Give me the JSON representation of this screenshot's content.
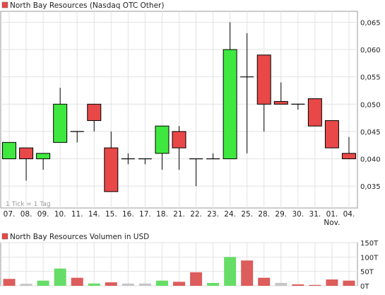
{
  "colors": {
    "up": "#3fe83f",
    "down": "#e84848",
    "neutral": "#c6c6c6",
    "volume_up": "#66dd66",
    "volume_down": "#dd5c5c",
    "grid": "#e2e2e2",
    "frame": "#999999"
  },
  "chart_data": [
    {
      "type": "candlestick",
      "title": "North Bay Resources (Nasdaq OTC Other)",
      "legend_color": "#e84848",
      "annotation": "1 Tick = 1 Tag",
      "y_axis_position": "right",
      "ylim": [
        0.031,
        0.067
      ],
      "yticks": [
        "0,035",
        "0,040",
        "0,045",
        "0,050",
        "0,055",
        "0,060",
        "0,065"
      ],
      "ytick_values": [
        0.035,
        0.04,
        0.045,
        0.05,
        0.055,
        0.06,
        0.065
      ],
      "grid": true,
      "categories": [
        "07.",
        "08.",
        "09.",
        "10.",
        "11.",
        "14.",
        "15.",
        "16.",
        "17.",
        "18.",
        "21.",
        "22.",
        "23.",
        "24.",
        "25.",
        "28.",
        "29.",
        "30.",
        "31.",
        "01.",
        "04."
      ],
      "category_sublabels": {
        "01.": "Nov."
      },
      "open": [
        0.04,
        0.042,
        0.04,
        0.043,
        0.045,
        0.05,
        0.042,
        0.04,
        0.04,
        0.041,
        0.045,
        0.04,
        0.04,
        0.04,
        0.055,
        0.059,
        0.0505,
        0.05,
        0.051,
        0.047,
        0.041
      ],
      "high": [
        0.043,
        0.042,
        0.041,
        0.053,
        0.045,
        0.05,
        0.045,
        0.041,
        0.04,
        0.046,
        0.046,
        0.04,
        0.041,
        0.065,
        0.063,
        0.059,
        0.054,
        0.05,
        0.051,
        0.047,
        0.044
      ],
      "low": [
        0.04,
        0.036,
        0.038,
        0.043,
        0.043,
        0.045,
        0.034,
        0.039,
        0.039,
        0.038,
        0.038,
        0.035,
        0.04,
        0.04,
        0.041,
        0.045,
        0.05,
        0.049,
        0.046,
        0.042,
        0.04
      ],
      "close": [
        0.043,
        0.04,
        0.041,
        0.05,
        0.045,
        0.047,
        0.034,
        0.04,
        0.04,
        0.046,
        0.042,
        0.04,
        0.04,
        0.06,
        0.055,
        0.05,
        0.05,
        0.05,
        0.046,
        0.042,
        0.04
      ]
    },
    {
      "type": "bar",
      "title": "North Bay Resources Volumen in USD",
      "legend_color": "#e84848",
      "y_axis_position": "right",
      "ylim": [
        0,
        150
      ],
      "yticks": [
        "0T",
        "50T",
        "100T",
        "150T"
      ],
      "ytick_values": [
        0,
        50,
        100,
        150
      ],
      "grid": true,
      "categories": [
        "07.",
        "08.",
        "09.",
        "10.",
        "11.",
        "14.",
        "15.",
        "16.",
        "17.",
        "18.",
        "21.",
        "22.",
        "23.",
        "24.",
        "25.",
        "28.",
        "29.",
        "30.",
        "31.",
        "01.",
        "04."
      ],
      "values": [
        24,
        7,
        18,
        60,
        28,
        8,
        12,
        8,
        8,
        18,
        14,
        47,
        10,
        100,
        88,
        28,
        10,
        5,
        3,
        22,
        18
      ],
      "direction": [
        "down",
        "neutral",
        "up",
        "up",
        "down",
        "up",
        "down",
        "neutral",
        "neutral",
        "up",
        "down",
        "down",
        "up",
        "up",
        "down",
        "down",
        "neutral",
        "down",
        "down",
        "down",
        "down"
      ]
    }
  ]
}
